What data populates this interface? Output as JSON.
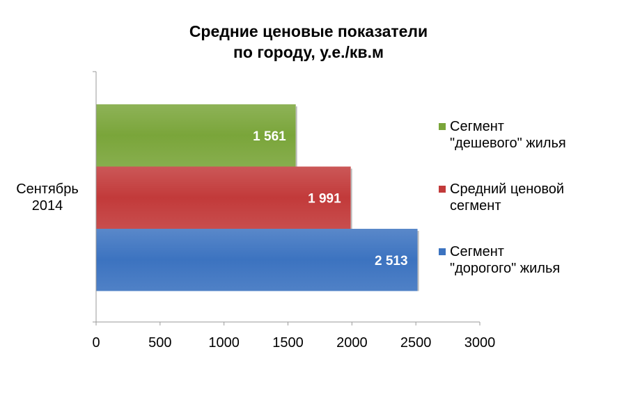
{
  "chart_data": {
    "type": "bar",
    "orientation": "horizontal",
    "title": [
      "Средние ценовые показатели",
      "по городу, у.е./кв.м"
    ],
    "categories": [
      "Сентябрь 2014"
    ],
    "category_label_lines": [
      "Сентябрь",
      "2014"
    ],
    "series": [
      {
        "name": "Сегмент \"дешевого\" жилья",
        "legend_lines": [
          "Сегмент",
          "\"дешевого\" жилья"
        ],
        "values": [
          1561
        ],
        "label": "1 561",
        "color": "#7aa53a"
      },
      {
        "name": "Средний ценовой сегмент",
        "legend_lines": [
          "Средний ценовой",
          "сегмент"
        ],
        "values": [
          1991
        ],
        "label": "1 991",
        "color": "#c23a3a"
      },
      {
        "name": "Сегмент \"дорогого\" жилья",
        "legend_lines": [
          "Сегмент",
          "\"дорогого\" жилья"
        ],
        "values": [
          2513
        ],
        "label": "2 513",
        "color": "#3c73c0"
      }
    ],
    "xlim": [
      0,
      3000
    ],
    "xticks": [
      0,
      500,
      1000,
      1500,
      2000,
      2500,
      3000
    ],
    "xtick_labels": [
      "0",
      "500",
      "1000",
      "1500",
      "2000",
      "2500",
      "3000"
    ],
    "grid": false,
    "legend_position": "right"
  }
}
